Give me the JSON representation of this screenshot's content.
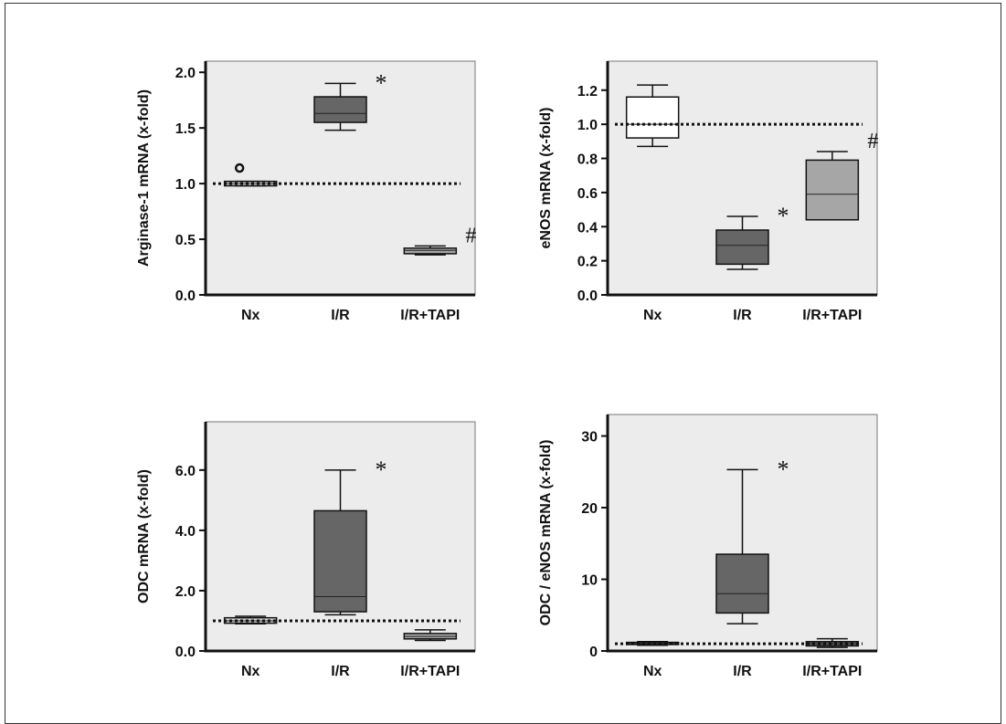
{
  "chart_data": [
    {
      "type": "box",
      "ylabel": "Arginase-1 mRNA (x-fold)",
      "ylim": [
        0,
        2.1
      ],
      "yticks": [
        0.0,
        0.5,
        1.0,
        1.5,
        2.0
      ],
      "ytick_labels": [
        "0.0",
        "0.5",
        "1.0",
        "1.5",
        "2.0"
      ],
      "reference_line": 1.0,
      "categories": [
        "Nx",
        "I/R",
        "I/R+TAPI"
      ],
      "boxes": [
        {
          "category": "Nx",
          "min": 0.98,
          "q1": 0.98,
          "median": 1.0,
          "q3": 1.02,
          "max": 1.02,
          "color": "#d9d9d9",
          "outliers": [
            1.14
          ]
        },
        {
          "category": "I/R",
          "min": 1.48,
          "q1": 1.55,
          "median": 1.63,
          "q3": 1.78,
          "max": 1.9,
          "color": "#666666",
          "annotation": "*"
        },
        {
          "category": "I/R+TAPI",
          "min": 0.36,
          "q1": 0.37,
          "median": 0.4,
          "q3": 0.42,
          "max": 0.44,
          "color": "#a6a6a6",
          "annotation": "#"
        }
      ]
    },
    {
      "type": "box",
      "ylabel": "eNOS mRNA (x-fold)",
      "ylim": [
        0,
        1.37
      ],
      "yticks": [
        0.0,
        0.2,
        0.4,
        0.6,
        0.8,
        1.0,
        1.2
      ],
      "ytick_labels": [
        "0.0",
        "0.2",
        "0.4",
        "0.6",
        "0.8",
        "1.0",
        "1.2"
      ],
      "reference_line": 1.0,
      "categories": [
        "Nx",
        "I/R",
        "I/R+TAPI"
      ],
      "boxes": [
        {
          "category": "Nx",
          "min": 0.87,
          "q1": 0.92,
          "median": 1.0,
          "q3": 1.16,
          "max": 1.23,
          "color": "#ffffff"
        },
        {
          "category": "I/R",
          "min": 0.15,
          "q1": 0.18,
          "median": 0.29,
          "q3": 0.38,
          "max": 0.46,
          "color": "#666666",
          "annotation": "*"
        },
        {
          "category": "I/R+TAPI",
          "min": 0.44,
          "q1": 0.44,
          "median": 0.59,
          "q3": 0.79,
          "max": 0.84,
          "color": "#a6a6a6",
          "annotation": "#"
        }
      ]
    },
    {
      "type": "box",
      "ylabel": "ODC mRNA (x-fold)",
      "ylim": [
        0,
        7.6
      ],
      "yticks": [
        0.0,
        2.0,
        4.0,
        6.0
      ],
      "ytick_labels": [
        "0.0",
        "2.0",
        "4.0",
        "6.0"
      ],
      "reference_line": 1.0,
      "categories": [
        "Nx",
        "I/R",
        "I/R+TAPI"
      ],
      "boxes": [
        {
          "category": "Nx",
          "min": 0.9,
          "q1": 0.92,
          "median": 1.0,
          "q3": 1.1,
          "max": 1.15,
          "color": "#d9d9d9"
        },
        {
          "category": "I/R",
          "min": 1.2,
          "q1": 1.3,
          "median": 1.8,
          "q3": 4.65,
          "max": 6.0,
          "color": "#666666",
          "annotation": "*"
        },
        {
          "category": "I/R+TAPI",
          "min": 0.35,
          "q1": 0.4,
          "median": 0.48,
          "q3": 0.58,
          "max": 0.7,
          "color": "#a6a6a6"
        }
      ]
    },
    {
      "type": "box",
      "ylabel": "ODC / eNOS mRNA (x-fold)",
      "ylim": [
        0,
        33
      ],
      "yticks": [
        0,
        10,
        20,
        30
      ],
      "ytick_labels": [
        "0",
        "10",
        "20",
        "30"
      ],
      "reference_line": 1.0,
      "categories": [
        "Nx",
        "I/R",
        "I/R+TAPI"
      ],
      "boxes": [
        {
          "category": "Nx",
          "min": 0.8,
          "q1": 0.9,
          "median": 1.0,
          "q3": 1.2,
          "max": 1.3,
          "color": "#666666"
        },
        {
          "category": "I/R",
          "min": 3.8,
          "q1": 5.3,
          "median": 8.0,
          "q3": 13.5,
          "max": 25.3,
          "color": "#666666",
          "annotation": "*"
        },
        {
          "category": "I/R+TAPI",
          "min": 0.5,
          "q1": 0.7,
          "median": 1.0,
          "q3": 1.3,
          "max": 1.7,
          "color": "#666666"
        }
      ]
    }
  ]
}
